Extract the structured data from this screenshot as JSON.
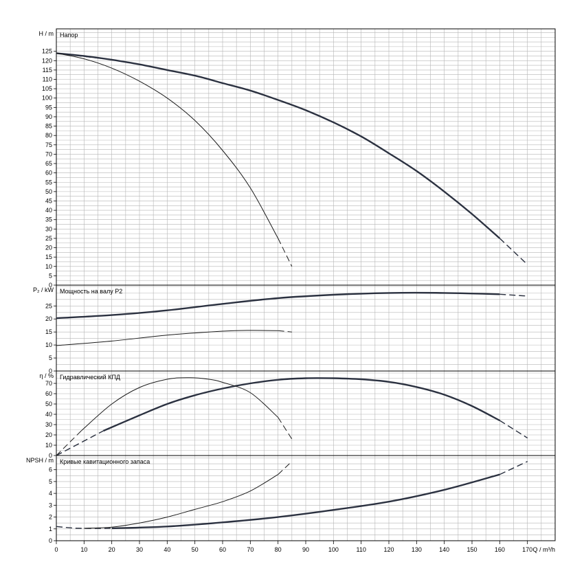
{
  "chart_data": {
    "type": "line",
    "x_axis": {
      "label": "Q / m³/h",
      "min": 0,
      "max": 180,
      "ticks": [
        0,
        10,
        20,
        30,
        40,
        50,
        60,
        70,
        80,
        90,
        100,
        110,
        120,
        130,
        140,
        150,
        160,
        170
      ]
    },
    "grid": true,
    "panels": [
      {
        "id": "head",
        "title": "Напор",
        "ylabel": "H / m",
        "ylim": [
          0,
          137
        ],
        "ticks": [
          0,
          5,
          10,
          15,
          20,
          25,
          30,
          35,
          40,
          45,
          50,
          55,
          60,
          65,
          70,
          75,
          80,
          85,
          90,
          95,
          100,
          105,
          110,
          115,
          120,
          125
        ],
        "series": [
          {
            "weight": "thick",
            "points": [
              [
                0,
                124
              ],
              [
                10,
                122.5
              ],
              [
                20,
                120.5
              ],
              [
                30,
                118
              ],
              [
                40,
                115
              ],
              [
                50,
                112
              ],
              [
                60,
                108
              ],
              [
                70,
                104
              ],
              [
                80,
                99
              ],
              [
                90,
                93.5
              ],
              [
                100,
                87
              ],
              [
                110,
                79.5
              ],
              [
                120,
                70.5
              ],
              [
                130,
                61
              ],
              [
                140,
                50
              ],
              [
                150,
                38
              ],
              [
                160,
                25
              ]
            ],
            "dashed": [
              [
                0,
                124
              ],
              [
                20,
                120.5
              ]
            ],
            "dashed_end": [
              [
                160,
                25
              ],
              [
                170,
                11
              ]
            ]
          },
          {
            "weight": "thin",
            "points": [
              [
                0,
                124
              ],
              [
                10,
                121
              ],
              [
                20,
                116
              ],
              [
                30,
                109
              ],
              [
                40,
                100
              ],
              [
                50,
                88
              ],
              [
                60,
                72
              ],
              [
                70,
                52
              ],
              [
                80,
                25
              ]
            ],
            "dashed_end": [
              [
                80,
                25
              ],
              [
                85,
                10
              ]
            ]
          }
        ]
      },
      {
        "id": "power",
        "title": "Мощность на валу P2",
        "ylabel": "P₂ / kW",
        "ylim": [
          0,
          33
        ],
        "ticks": [
          0,
          5,
          10,
          15,
          20,
          25
        ],
        "series": [
          {
            "weight": "thick",
            "points": [
              [
                0,
                20.3
              ],
              [
                20,
                21.5
              ],
              [
                40,
                23.3
              ],
              [
                60,
                25.8
              ],
              [
                80,
                28
              ],
              [
                100,
                29.3
              ],
              [
                120,
                30
              ],
              [
                140,
                30
              ],
              [
                160,
                29.5
              ]
            ],
            "dashed": [
              [
                0,
                20.3
              ],
              [
                20,
                21.5
              ]
            ],
            "dashed_end": [
              [
                160,
                29.5
              ],
              [
                170,
                28.8
              ]
            ]
          },
          {
            "weight": "thin",
            "points": [
              [
                0,
                9.8
              ],
              [
                20,
                11.5
              ],
              [
                40,
                13.8
              ],
              [
                60,
                15.3
              ],
              [
                70,
                15.6
              ],
              [
                80,
                15.5
              ]
            ],
            "dashed_end": [
              [
                80,
                15.5
              ],
              [
                85,
                15
              ]
            ]
          }
        ]
      },
      {
        "id": "eff",
        "title": "Гидравлический КПД",
        "ylabel": "η / %",
        "ylim": [
          0,
          82
        ],
        "ticks": [
          0,
          10,
          20,
          30,
          40,
          50,
          60,
          70
        ],
        "series": [
          {
            "weight": "thick",
            "points": [
              [
                17,
                24
              ],
              [
                30,
                39
              ],
              [
                40,
                50
              ],
              [
                50,
                58.5
              ],
              [
                60,
                65
              ],
              [
                70,
                70
              ],
              [
                80,
                73.5
              ],
              [
                90,
                75
              ],
              [
                100,
                75
              ],
              [
                110,
                74
              ],
              [
                120,
                71.5
              ],
              [
                130,
                66.5
              ],
              [
                140,
                59
              ],
              [
                150,
                48
              ],
              [
                160,
                34
              ]
            ],
            "dashed": [
              [
                0,
                0
              ],
              [
                17,
                24
              ]
            ],
            "dashed_end": [
              [
                160,
                34
              ],
              [
                170,
                17
              ]
            ]
          },
          {
            "weight": "thin",
            "points": [
              [
                9,
                24
              ],
              [
                20,
                50
              ],
              [
                30,
                66
              ],
              [
                40,
                74
              ],
              [
                48,
                75.5
              ],
              [
                55,
                74
              ],
              [
                60,
                71
              ],
              [
                70,
                61
              ],
              [
                80,
                37
              ]
            ],
            "dashed": [
              [
                0,
                0
              ],
              [
                9,
                24
              ]
            ],
            "dashed_end": [
              [
                80,
                37
              ],
              [
                85,
                16
              ]
            ]
          }
        ]
      },
      {
        "id": "npsh",
        "title": "Кривые кавитационного запаса",
        "ylabel": "NPSH / m",
        "ylim": [
          0,
          7.2
        ],
        "ticks": [
          0,
          1,
          2,
          3,
          4,
          5,
          6
        ],
        "series": [
          {
            "weight": "thick",
            "points": [
              [
                20,
                1.05
              ],
              [
                40,
                1.2
              ],
              [
                60,
                1.55
              ],
              [
                80,
                2
              ],
              [
                100,
                2.6
              ],
              [
                120,
                3.3
              ],
              [
                140,
                4.3
              ],
              [
                160,
                5.6
              ]
            ],
            "dashed": [
              [
                0,
                1.2
              ],
              [
                8,
                1.05
              ],
              [
                20,
                1.05
              ]
            ],
            "dashed_end": [
              [
                160,
                5.6
              ],
              [
                170,
                6.7
              ]
            ]
          },
          {
            "weight": "thin",
            "points": [
              [
                10,
                1.05
              ],
              [
                20,
                1.15
              ],
              [
                30,
                1.5
              ],
              [
                40,
                2
              ],
              [
                50,
                2.65
              ],
              [
                60,
                3.3
              ],
              [
                70,
                4.2
              ],
              [
                80,
                5.6
              ]
            ],
            "dashed_end": [
              [
                80,
                5.6
              ],
              [
                85,
                6.7
              ]
            ]
          }
        ]
      }
    ]
  }
}
